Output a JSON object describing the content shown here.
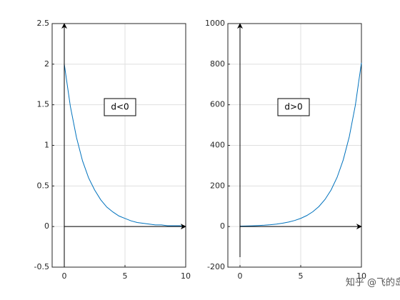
{
  "chart_data": [
    {
      "type": "line",
      "annotation": "d<0",
      "x": [
        0,
        0.5,
        1,
        1.5,
        2,
        2.5,
        3,
        3.5,
        4,
        4.5,
        5,
        5.5,
        6,
        6.5,
        7,
        7.5,
        8,
        8.5,
        9,
        9.5,
        10
      ],
      "values": [
        2,
        1.48,
        1.1,
        0.81,
        0.6,
        0.45,
        0.33,
        0.24,
        0.18,
        0.13,
        0.1,
        0.07,
        0.05,
        0.04,
        0.03,
        0.02,
        0.02,
        0.01,
        0.01,
        0.01,
        0
      ],
      "color": "#0072bd",
      "xlim": [
        -1,
        10
      ],
      "xticks": [
        0,
        5,
        10
      ],
      "ylim": [
        -0.5,
        2.5
      ],
      "yticks": [
        -0.5,
        0,
        0.5,
        1,
        1.5,
        2,
        2.5
      ],
      "grid": true
    },
    {
      "type": "line",
      "annotation": "d>0",
      "x": [
        0,
        0.5,
        1,
        1.5,
        2,
        2.5,
        3,
        3.5,
        4,
        4.5,
        5,
        5.5,
        6,
        6.5,
        7,
        7.5,
        8,
        8.5,
        9,
        9.5,
        10
      ],
      "values": [
        2,
        2.7,
        3.6,
        4.9,
        6.6,
        9,
        12.1,
        16.3,
        22,
        29.8,
        40.2,
        54.2,
        73.2,
        98.8,
        133.4,
        180,
        243,
        328.1,
        442.8,
        597.8,
        806.9
      ],
      "color": "#0072bd",
      "xlim": [
        -1,
        10
      ],
      "xticks": [
        0,
        5,
        10
      ],
      "ylim": [
        -200,
        1000
      ],
      "yticks": [
        -200,
        0,
        200,
        400,
        600,
        800,
        1000
      ],
      "grid": true
    }
  ],
  "watermark": "知乎 @飞的岛"
}
